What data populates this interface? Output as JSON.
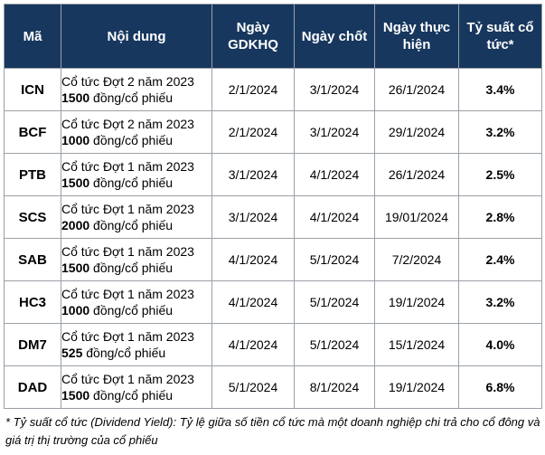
{
  "table": {
    "headers": {
      "code": "Mã",
      "content": "Nội dung",
      "ex_date_l1": "Ngày",
      "ex_date_l2": "GDKHQ",
      "record_date": "Ngày chốt",
      "pay_date_l1": "Ngày thực",
      "pay_date_l2": "hiện",
      "yield_l1": "Tỷ suất cổ",
      "yield_l2": "tức*"
    },
    "rows": [
      {
        "code": "ICN",
        "line1": "Cổ tức Đợt 2 năm 2023",
        "amount": "1500",
        "unit": " đồng/cổ phiếu",
        "ex_date": "2/1/2024",
        "record_date": "3/1/2024",
        "pay_date": "26/1/2024",
        "yield": "3.4%"
      },
      {
        "code": "BCF",
        "line1": "Cổ tức Đợt 2 năm 2023",
        "amount": "1000",
        "unit": " đồng/cổ phiếu",
        "ex_date": "2/1/2024",
        "record_date": "3/1/2024",
        "pay_date": "29/1/2024",
        "yield": "3.2%"
      },
      {
        "code": "PTB",
        "line1": "Cổ tức Đợt 1 năm 2023",
        "amount": "1500",
        "unit": " đồng/cổ phiếu",
        "ex_date": "3/1/2024",
        "record_date": "4/1/2024",
        "pay_date": "26/1/2024",
        "yield": "2.5%"
      },
      {
        "code": "SCS",
        "line1": "Cổ tức Đợt 1 năm 2023",
        "amount": "2000",
        "unit": " đồng/cổ phiếu",
        "ex_date": "3/1/2024",
        "record_date": "4/1/2024",
        "pay_date": "19/01/2024",
        "yield": "2.8%"
      },
      {
        "code": "SAB",
        "line1": "Cổ tức Đợt 1 năm 2023",
        "amount": "1500",
        "unit": " đồng/cổ phiếu",
        "ex_date": "4/1/2024",
        "record_date": "5/1/2024",
        "pay_date": "7/2/2024",
        "yield": "2.4%"
      },
      {
        "code": "HC3",
        "line1": "Cổ tức Đợt 1 năm 2023",
        "amount": "1000",
        "unit": " đồng/cổ phiếu",
        "ex_date": "4/1/2024",
        "record_date": "5/1/2024",
        "pay_date": "19/1/2024",
        "yield": "3.2%"
      },
      {
        "code": "DM7",
        "line1": "Cổ tức Đợt 1 năm 2023",
        "amount": "525",
        "unit": " đồng/cổ phiếu",
        "ex_date": "4/1/2024",
        "record_date": "5/1/2024",
        "pay_date": "15/1/2024",
        "yield": "4.0%"
      },
      {
        "code": "DAD",
        "line1": "Cổ tức Đợt 1 năm 2023",
        "amount": "1500",
        "unit": " đồng/cổ phiếu",
        "ex_date": "5/1/2024",
        "record_date": "8/1/2024",
        "pay_date": "19/1/2024",
        "yield": "6.8%"
      }
    ]
  },
  "footnote": "* Tỷ suất cổ tức (Dividend Yield): Tỷ lệ giữa số tiền cổ tức mà một doanh nghiệp chi trả cho cổ đông và giá trị thị trường của cổ phiếu",
  "colors": {
    "header_bg": "#17375e",
    "header_text": "#ffffff",
    "border": "#9aa0a6"
  }
}
